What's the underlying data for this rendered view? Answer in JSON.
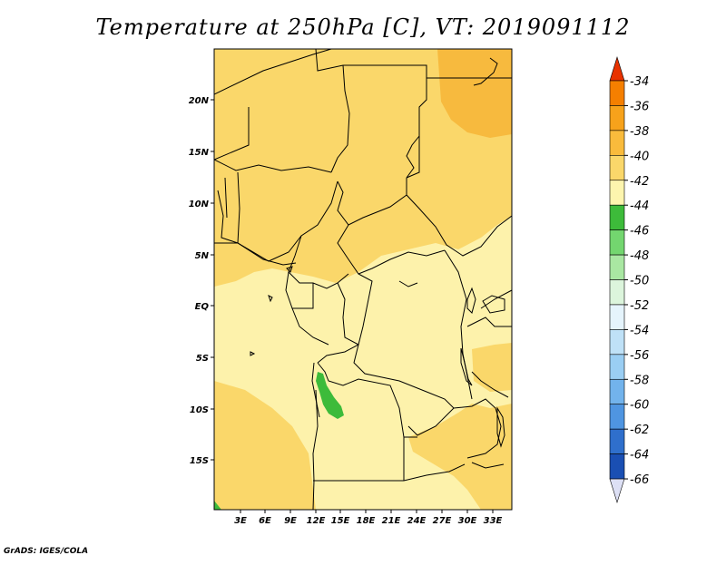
{
  "title": "Temperature at 250hPa [C], VT: 2019091112",
  "credit": "GrADS: IGES/COLA",
  "lat_labels": [
    "20N",
    "15N",
    "10N",
    "5N",
    "EQ",
    "5S",
    "10S",
    "15S"
  ],
  "lon_labels": [
    "3E",
    "6E",
    "9E",
    "12E",
    "15E",
    "18E",
    "21E",
    "24E",
    "27E",
    "30E",
    "33E"
  ],
  "colorbar": {
    "levels": [
      "-34",
      "-36",
      "-38",
      "-40",
      "-42",
      "-44",
      "-46",
      "-48",
      "-50",
      "-52",
      "-54",
      "-56",
      "-58",
      "-60",
      "-62",
      "-64",
      "-66"
    ],
    "colors": [
      "#f05a00",
      "#f57f00",
      "#f7a21b",
      "#f9bb3c",
      "#fad76a",
      "#fdf5ae",
      "#3dbb3a",
      "#73d66f",
      "#a9e7a2",
      "#dcf5dc",
      "#e5f4fc",
      "#bfe1f7",
      "#9acef3",
      "#72b3ec",
      "#4f95e1",
      "#2f6fcc",
      "#1a4fb3",
      "#0b2f8f"
    ],
    "top_arrow_color": "#e83200",
    "bottom_arrow_color": "#dde0f5"
  },
  "map_colors": {
    "base": "#fdf2ab",
    "band_40_42": "#fad76a",
    "band_38_40": "#f7ba3e",
    "band_44_46": "#3dbb3a"
  }
}
